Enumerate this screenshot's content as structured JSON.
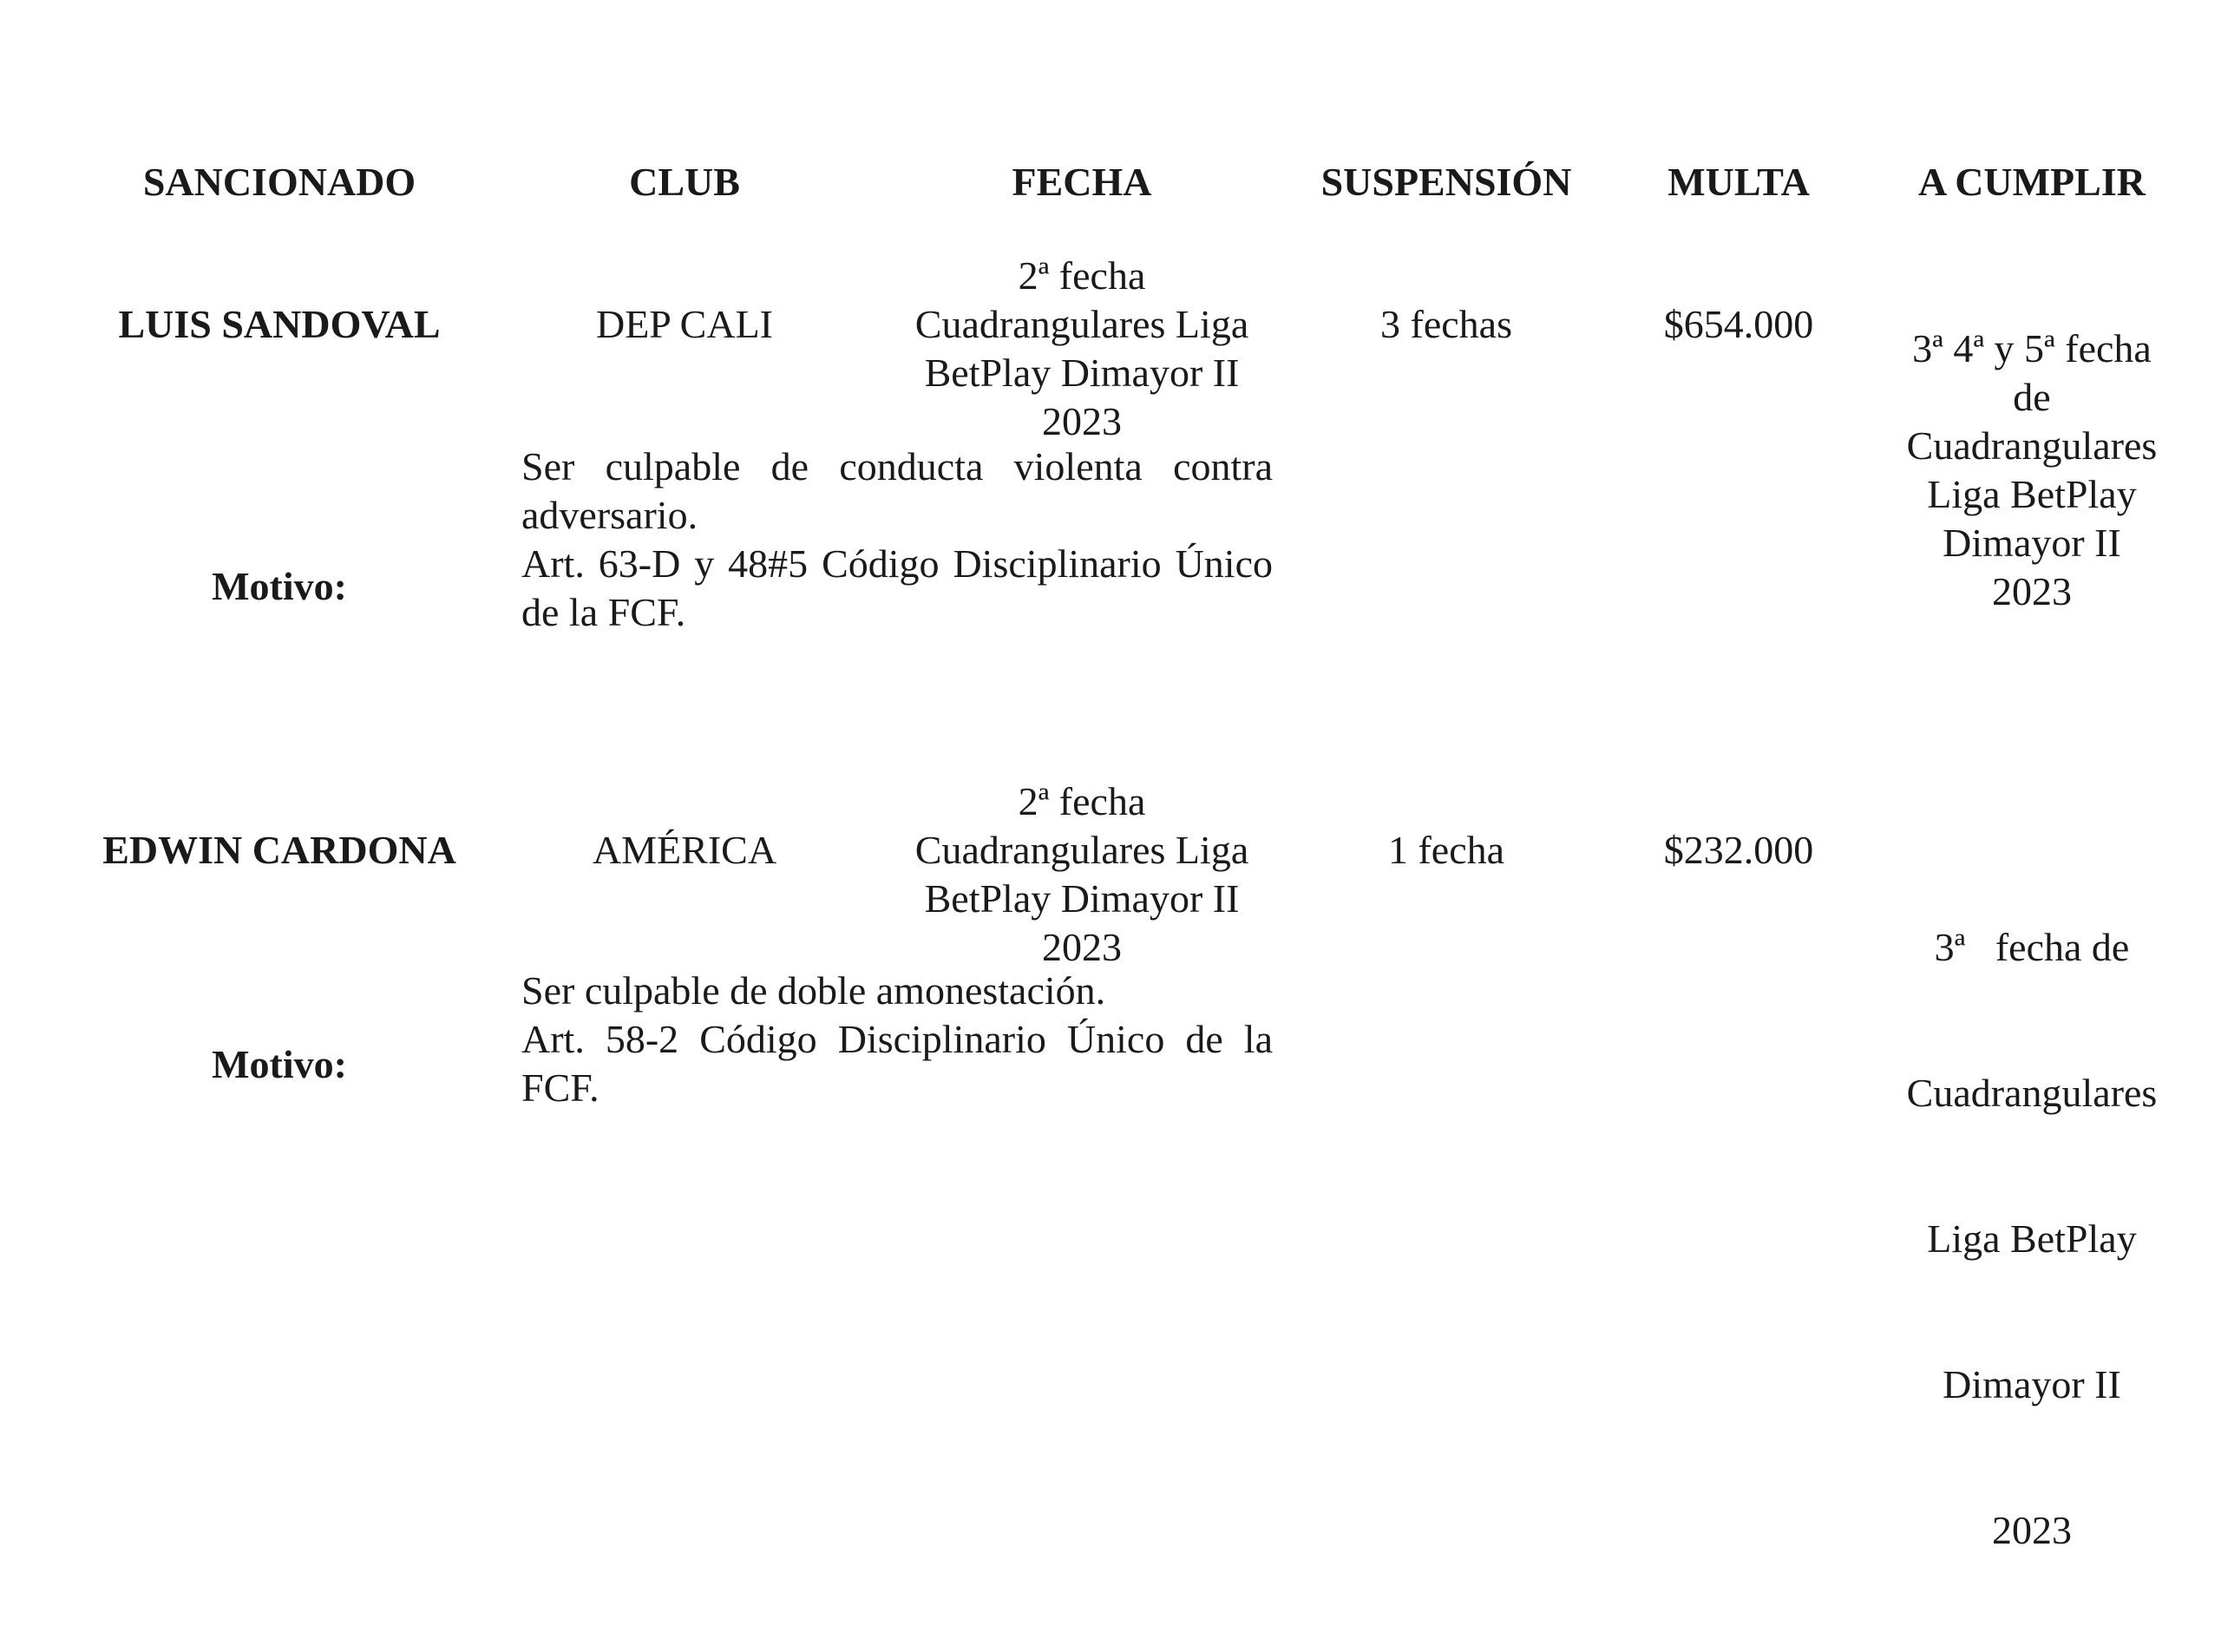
{
  "headers": [
    "SANCIONADO",
    "CLUB",
    "FECHA",
    "SUSPENSIÓN",
    "MULTA",
    "A CUMPLIR"
  ],
  "rows": [
    {
      "sancionado": "LUIS SANDOVAL",
      "club": "DEP CALI",
      "fecha": [
        "2ª fecha",
        "Cuadrangulares Liga",
        "BetPlay Dimayor II",
        "2023"
      ],
      "suspension": "3 fechas",
      "multa": "$654.000",
      "a_cumplir": [
        "3ª 4ª y 5ª fecha",
        "de",
        "Cuadrangulares",
        "Liga BetPlay",
        "Dimayor II",
        "2023"
      ],
      "motivo_label": "Motivo:",
      "motivo": [
        "Ser culpable de conducta violenta contra adversario.",
        "Art. 63-D y 48#5 Código Disciplinario Único de la FCF."
      ]
    },
    {
      "sancionado": "EDWIN CARDONA",
      "club": "AMÉRICA",
      "fecha": [
        "2ª fecha",
        "Cuadrangulares Liga",
        "BetPlay Dimayor II",
        "2023"
      ],
      "suspension": "1 fecha",
      "multa": "$232.000",
      "a_cumplir": [
        "3ª   fecha de",
        "Cuadrangulares",
        "Liga BetPlay",
        "Dimayor II",
        "2023"
      ],
      "motivo_label": "Motivo:",
      "motivo": [
        "Ser culpable de doble amonestación.",
        "Art. 58-2 Código Disciplinario Único de la FCF."
      ]
    }
  ]
}
